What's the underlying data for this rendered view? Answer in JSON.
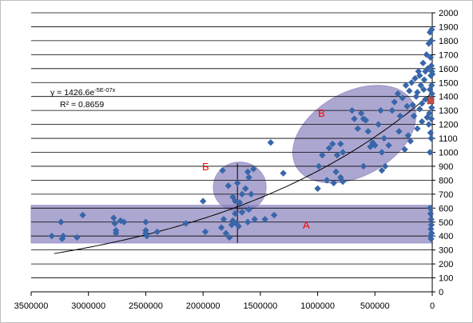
{
  "colors": {
    "marker": "#3866a8",
    "highlight_marker": "#c0504d",
    "zone_fill": "#7f78b8",
    "zone_text": "#ff0000",
    "grid": "#000000",
    "trend": "#000000"
  },
  "annotations": {
    "equation_main": "y = 1426.6e",
    "equation_exp": "-5E-07x",
    "r_squared": "R² = 0.8659",
    "zone_a": "А",
    "zone_b": "Б",
    "zone_v": "В"
  },
  "chart_data": {
    "type": "scatter",
    "x_reversed": true,
    "xlim": [
      0,
      3500000
    ],
    "ylim": [
      0,
      2000
    ],
    "x_ticks": [
      3500000,
      3000000,
      2500000,
      2000000,
      1500000,
      1000000,
      500000,
      0
    ],
    "x_tick_labels": [
      "3500000",
      "3000000",
      "2500000",
      "2000000",
      "1500000",
      "1000000",
      "500000",
      "0"
    ],
    "y_ticks": [
      0,
      100,
      200,
      300,
      400,
      500,
      600,
      700,
      800,
      900,
      1000,
      1100,
      1200,
      1300,
      1400,
      1500,
      1600,
      1700,
      1800,
      1900,
      2000
    ],
    "y_tick_labels": [
      "0",
      "100",
      "200",
      "300",
      "400",
      "500",
      "600",
      "700",
      "800",
      "900",
      "1000",
      "1100",
      "1200",
      "1300",
      "1400",
      "1500",
      "1600",
      "1700",
      "1800",
      "1900",
      "2000"
    ],
    "grid": "horizontal",
    "trendline": {
      "type": "exponential",
      "a": 1426.6,
      "b": -5e-07,
      "x_range": [
        3300000,
        0
      ]
    },
    "regions": [
      {
        "name": "А",
        "shape": "band",
        "x_range": [
          3500000,
          0
        ],
        "y_range": [
          350,
          620
        ]
      },
      {
        "name": "Б",
        "shape": "ellipse",
        "center": [
          1680000,
          750
        ],
        "radius": [
          230000,
          180
        ]
      },
      {
        "name": "В",
        "shape": "ellipse",
        "center": [
          680000,
          1130
        ],
        "radius": [
          580000,
          300
        ],
        "rotation_deg": -29
      }
    ],
    "error_bar": {
      "x": 1700000,
      "y_low": 350,
      "y_high": 920
    },
    "points": [
      [
        3320000,
        400
      ],
      [
        3240000,
        500
      ],
      [
        3230000,
        380
      ],
      [
        3220000,
        400
      ],
      [
        3100000,
        390
      ],
      [
        3050000,
        550
      ],
      [
        2780000,
        530
      ],
      [
        2770000,
        490
      ],
      [
        2760000,
        440
      ],
      [
        2760000,
        420
      ],
      [
        2720000,
        510
      ],
      [
        2690000,
        500
      ],
      [
        2500000,
        500
      ],
      [
        2500000,
        440
      ],
      [
        2500000,
        420
      ],
      [
        2490000,
        400
      ],
      [
        2400000,
        430
      ],
      [
        2150000,
        490
      ],
      [
        2000000,
        650
      ],
      [
        1980000,
        430
      ],
      [
        1840000,
        460
      ],
      [
        1820000,
        520
      ],
      [
        1800000,
        420
      ],
      [
        1770000,
        390
      ],
      [
        1750000,
        480
      ],
      [
        1740000,
        510
      ],
      [
        1720000,
        560
      ],
      [
        1710000,
        490
      ],
      [
        1690000,
        470
      ],
      [
        1660000,
        570
      ],
      [
        1610000,
        500
      ],
      [
        1600000,
        590
      ],
      [
        1550000,
        520
      ],
      [
        1460000,
        520
      ],
      [
        1380000,
        550
      ],
      [
        1830000,
        870
      ],
      [
        1780000,
        760
      ],
      [
        1740000,
        680
      ],
      [
        1720000,
        650
      ],
      [
        1700000,
        780
      ],
      [
        1680000,
        640
      ],
      [
        1660000,
        700
      ],
      [
        1630000,
        740
      ],
      [
        1610000,
        860
      ],
      [
        1600000,
        820
      ],
      [
        1580000,
        700
      ],
      [
        1560000,
        880
      ],
      [
        1410000,
        1070
      ],
      [
        1300000,
        850
      ],
      [
        1000000,
        740
      ],
      [
        990000,
        900
      ],
      [
        960000,
        980
      ],
      [
        920000,
        800
      ],
      [
        900000,
        1030
      ],
      [
        870000,
        1060
      ],
      [
        860000,
        780
      ],
      [
        840000,
        860
      ],
      [
        830000,
        980
      ],
      [
        800000,
        1060
      ],
      [
        800000,
        820
      ],
      [
        780000,
        1000
      ],
      [
        780000,
        790
      ],
      [
        700000,
        1300
      ],
      [
        680000,
        1240
      ],
      [
        650000,
        1170
      ],
      [
        620000,
        1280
      ],
      [
        600000,
        1240
      ],
      [
        600000,
        900
      ],
      [
        580000,
        1230
      ],
      [
        560000,
        1150
      ],
      [
        540000,
        1040
      ],
      [
        520000,
        1070
      ],
      [
        500000,
        1050
      ],
      [
        470000,
        1200
      ],
      [
        450000,
        1300
      ],
      [
        440000,
        1000
      ],
      [
        440000,
        870
      ],
      [
        420000,
        1100
      ],
      [
        410000,
        900
      ],
      [
        380000,
        1050
      ],
      [
        350000,
        1300
      ],
      [
        330000,
        1360
      ],
      [
        300000,
        1420
      ],
      [
        290000,
        1150
      ],
      [
        280000,
        1260
      ],
      [
        260000,
        1390
      ],
      [
        240000,
        1020
      ],
      [
        230000,
        1480
      ],
      [
        220000,
        1330
      ],
      [
        210000,
        1120
      ],
      [
        200000,
        1440
      ],
      [
        190000,
        1080
      ],
      [
        180000,
        1500
      ],
      [
        170000,
        1340
      ],
      [
        160000,
        1260
      ],
      [
        150000,
        1530
      ],
      [
        140000,
        1400
      ],
      [
        130000,
        1170
      ],
      [
        120000,
        1580
      ],
      [
        110000,
        1310
      ],
      [
        100000,
        1480
      ],
      [
        90000,
        1220
      ],
      [
        80000,
        1640
      ],
      [
        70000,
        1520
      ],
      [
        60000,
        1380
      ],
      [
        50000,
        1700
      ],
      [
        40000,
        1600
      ],
      [
        30000,
        1780
      ],
      [
        25000,
        1280
      ],
      [
        20000,
        1860
      ],
      [
        20000,
        1450
      ],
      [
        15000,
        1680
      ],
      [
        15000,
        1140
      ],
      [
        12000,
        1550
      ],
      [
        10000,
        1800
      ],
      [
        10000,
        1380
      ],
      [
        8000,
        1240
      ],
      [
        8000,
        1620
      ],
      [
        6000,
        1480
      ],
      [
        5000,
        1880
      ],
      [
        5000,
        1320
      ],
      [
        4000,
        1580
      ],
      [
        3000,
        1420
      ],
      [
        20000,
        1000
      ],
      [
        10000,
        1100
      ],
      [
        30000,
        1200
      ],
      [
        45000,
        1250
      ],
      [
        60000,
        1580
      ],
      [
        75000,
        1450
      ],
      [
        90000,
        1350
      ],
      [
        110000,
        1550
      ],
      [
        130000,
        1430
      ],
      [
        0,
        1560
      ],
      [
        20000,
        600
      ],
      [
        15000,
        560
      ],
      [
        10000,
        520
      ],
      [
        8000,
        480
      ],
      [
        12000,
        450
      ],
      [
        5000,
        420
      ],
      [
        15000,
        400
      ],
      [
        10000,
        380
      ]
    ],
    "highlight_points": [
      [
        0,
        1370
      ]
    ]
  }
}
